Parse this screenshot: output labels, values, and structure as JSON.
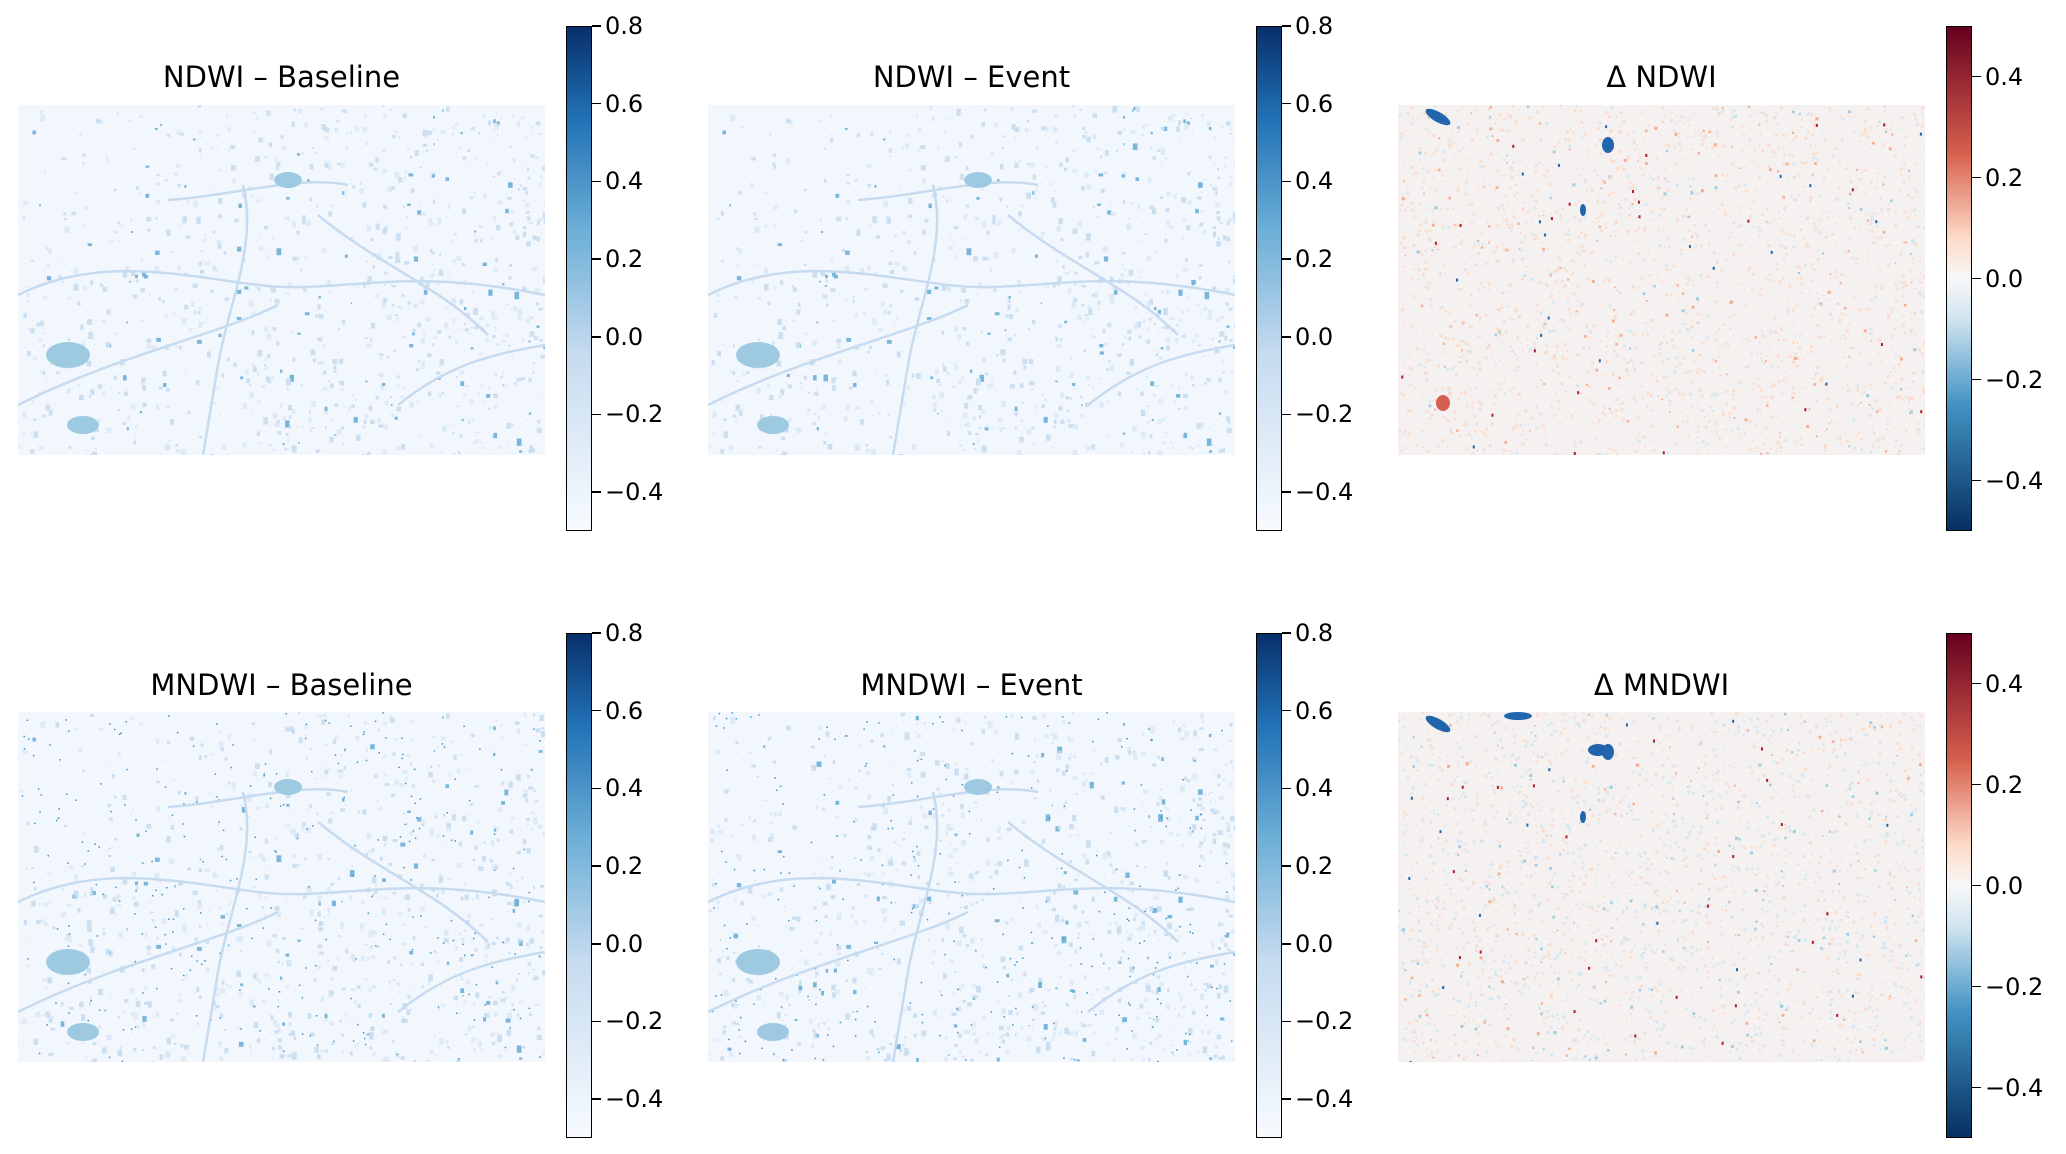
{
  "figure": {
    "panels": [
      {
        "id": "ndwi-baseline",
        "title": "NDWI – Baseline",
        "colormap": "Blues",
        "colorbar_range": [
          -0.5,
          0.8
        ],
        "colorbar_ticks": [
          "0.8",
          "0.6",
          "0.4",
          "0.2",
          "0.0",
          "−0.2",
          "−0.4"
        ]
      },
      {
        "id": "ndwi-event",
        "title": "NDWI – Event",
        "colormap": "Blues",
        "colorbar_range": [
          -0.5,
          0.8
        ],
        "colorbar_ticks": [
          "0.8",
          "0.6",
          "0.4",
          "0.2",
          "0.0",
          "−0.2",
          "−0.4"
        ]
      },
      {
        "id": "delta-ndwi",
        "title": "Δ NDWI",
        "colormap": "RdBu_r",
        "colorbar_range": [
          -0.5,
          0.5
        ],
        "colorbar_ticks": [
          "0.4",
          "0.2",
          "0.0",
          "−0.2",
          "−0.4"
        ]
      },
      {
        "id": "mndwi-baseline",
        "title": "MNDWI – Baseline",
        "colormap": "Blues",
        "colorbar_range": [
          -0.5,
          0.8
        ],
        "colorbar_ticks": [
          "0.8",
          "0.6",
          "0.4",
          "0.2",
          "0.0",
          "−0.2",
          "−0.4"
        ]
      },
      {
        "id": "mndwi-event",
        "title": "MNDWI – Event",
        "colormap": "Blues",
        "colorbar_range": [
          -0.5,
          0.8
        ],
        "colorbar_ticks": [
          "0.8",
          "0.6",
          "0.4",
          "0.2",
          "0.0",
          "−0.2",
          "−0.4"
        ]
      },
      {
        "id": "delta-mndwi",
        "title": "Δ MNDWI",
        "colormap": "RdBu_r",
        "colorbar_range": [
          -0.5,
          0.5
        ],
        "colorbar_ticks": [
          "0.4",
          "0.2",
          "0.0",
          "−0.2",
          "−0.4"
        ]
      }
    ],
    "colors": {
      "blues_low": "#f7fbff",
      "blues_high": "#08306b",
      "rdbu_low": "#053061",
      "rdbu_mid": "#f7f7f7",
      "rdbu_high": "#67001f"
    }
  }
}
